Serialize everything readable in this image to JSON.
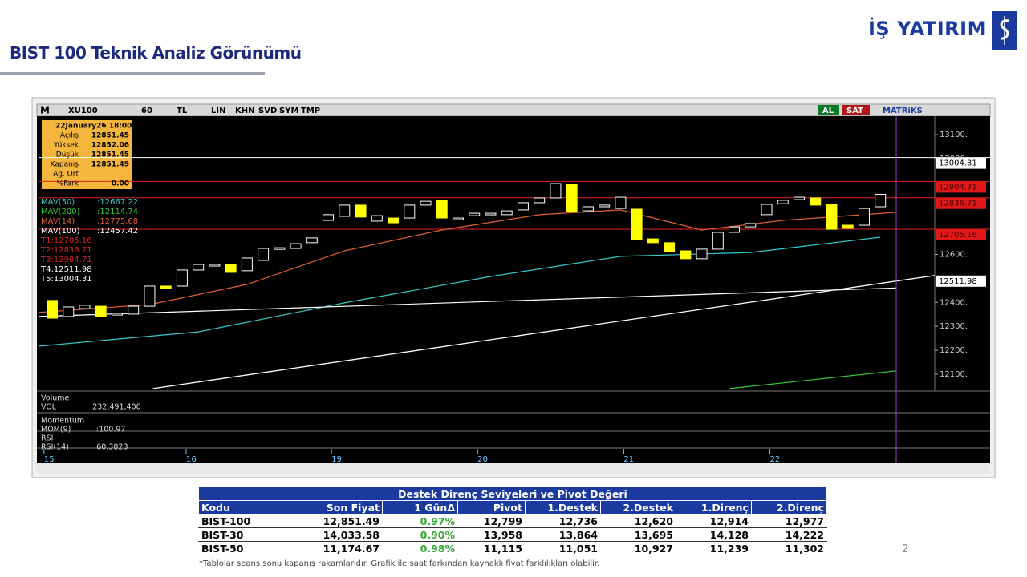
{
  "header": {
    "title": "BIST 100 Teknik Analiz Görünümü",
    "logo": "İŞ YATIRIM"
  },
  "toolbar": {
    "items": [
      "M",
      "XU100",
      "60",
      "TL",
      "LIN",
      "KHN",
      "SVD",
      "SYM",
      "TMP"
    ],
    "buy": "AL",
    "sell": "SAT",
    "brand": "MATRiKS"
  },
  "info_box": {
    "date": "22January26 18:00",
    "rows": [
      [
        "Açılış",
        "12851.45"
      ],
      [
        "Yüksek",
        "12852.06"
      ],
      [
        "Düşük",
        "12851.45"
      ],
      [
        "Kapanış",
        "12851.49"
      ],
      [
        "Ağ. Ort",
        null
      ],
      [
        "%Fark",
        "0.00"
      ]
    ]
  },
  "chart_data": {
    "type": "candlestick",
    "open": [
      12408,
      12341,
      12374,
      12384,
      12348,
      12351,
      12384,
      12468,
      12468,
      12535,
      12552,
      12558,
      12532,
      12575,
      12622,
      12625,
      12649,
      12742,
      12759,
      12806,
      12739,
      12752,
      12752,
      12806,
      12826,
      12746,
      12762,
      12766,
      12766,
      12786,
      12816,
      12836,
      12893,
      12782,
      12799,
      12792,
      12789,
      12665,
      12649,
      12615,
      12582,
      12622,
      12692,
      12715,
      12766,
      12812,
      12829,
      12836,
      12809,
      12722,
      12722,
      12799
    ],
    "close": [
      12334,
      12381,
      12388,
      12341,
      12354,
      12384,
      12468,
      12458,
      12535,
      12558,
      12558,
      12525,
      12585,
      12625,
      12628,
      12645,
      12669,
      12766,
      12806,
      12756,
      12762,
      12732,
      12806,
      12822,
      12752,
      12752,
      12772,
      12772,
      12782,
      12816,
      12836,
      12896,
      12779,
      12799,
      12806,
      12839,
      12662,
      12649,
      12612,
      12582,
      12622,
      12692,
      12715,
      12729,
      12809,
      12826,
      12839,
      12806,
      12705,
      12709,
      12792,
      12851
    ],
    "up_color": "#000000",
    "down_color": "#ffff00",
    "xlim": [
      -0.84,
      54.35
    ],
    "ylim": [
      12033,
      13177
    ],
    "yticks": [
      {
        "value": 13100,
        "label": "13100."
      },
      {
        "value": 13000,
        "label": "13000."
      },
      {
        "value": 12600,
        "label": "12600."
      },
      {
        "value": 12400,
        "label": "12400."
      },
      {
        "value": 12300,
        "label": "12300."
      },
      {
        "value": 12200,
        "label": "12200."
      },
      {
        "value": 12100,
        "label": "12100."
      }
    ],
    "xticks": [
      {
        "value": -0.5,
        "label": "15"
      },
      {
        "value": 8.25,
        "label": "16"
      },
      {
        "value": 17.2,
        "label": "19"
      },
      {
        "value": 26.2,
        "label": "20"
      },
      {
        "value": 35.2,
        "label": "21"
      },
      {
        "value": 44.2,
        "label": "22"
      }
    ],
    "moving_averages": [
      {
        "name": "MAV(50)",
        "value_label": ":12667.22",
        "color": "#33cccc",
        "x": [
          -0.84,
          9,
          18,
          27,
          35,
          43,
          51
        ],
        "values": [
          12217,
          12277,
          12398,
          12508,
          12592,
          12608,
          12672
        ]
      },
      {
        "name": "MAV(200)",
        "value_label": ":12114.74",
        "color": "#33cc33",
        "x": [
          41.7,
          51.98
        ],
        "values": [
          12040,
          12114
        ]
      },
      {
        "name": "MAV(14)",
        "value_label": ":12775.68",
        "color": "#e06030",
        "x": [
          -0.84,
          6,
          12,
          18,
          24,
          30,
          35,
          40,
          45,
          51.98
        ],
        "values": [
          12358,
          12391,
          12475,
          12615,
          12702,
          12766,
          12786,
          12702,
          12742,
          12776
        ]
      },
      {
        "name": "MAV(100)",
        "value_label": ":12457.42",
        "color": "#ffffff",
        "x": [
          -0.84,
          51.98
        ],
        "values": [
          12341,
          12460
        ]
      }
    ],
    "trend_line": {
      "color": "#ffffff",
      "x": [
        6.2,
        54.35
      ],
      "values": [
        12040,
        12512
      ]
    },
    "levels": [
      {
        "label": "T1:12705.16",
        "value": 12705.16,
        "color": "#e02020",
        "horizontal": true
      },
      {
        "label": "T2:12836.71",
        "value": 12836.71,
        "color": "#e02020",
        "horizontal": true
      },
      {
        "label": "T3:12904.71",
        "value": 12904.71,
        "color": "#e02020",
        "horizontal": true
      },
      {
        "label": "T4:12511.98",
        "value": 12511.98,
        "color": "#ffffff",
        "horizontal": false
      },
      {
        "label": "T5:13004.31",
        "value": 13004.31,
        "color": "#ffffff",
        "horizontal": true
      }
    ],
    "cursor_x": 51.98
  },
  "indicator_panels": [
    {
      "title": "Volume",
      "label": "VOL",
      "value": ":232,491,400"
    },
    {
      "title": "Momentum",
      "label": "MOM(9)",
      "value": ":100.97"
    },
    {
      "title": "RSI",
      "label": "RSI(14)",
      "value": ":60.3823"
    }
  ],
  "table": {
    "title": "Destek Direnç Seviyeleri ve Pivot Değeri",
    "headers": [
      "Kodu",
      "Son Fiyat",
      "1 GünΔ",
      "Pivot",
      "1.Destek",
      "2.Destek",
      "1.Direnç",
      "2.Direnç"
    ],
    "rows": [
      [
        "BIST-100",
        "12,851.49",
        "0.97%",
        "12,799",
        "12,736",
        "12,620",
        "12,914",
        "12,977"
      ],
      [
        "BIST-30",
        "14,033.58",
        "0.90%",
        "13,958",
        "13,864",
        "13,695",
        "14,128",
        "14,222"
      ],
      [
        "BIST-50",
        "11,174.67",
        "0.98%",
        "11,115",
        "11,051",
        "10,927",
        "11,239",
        "11,302"
      ]
    ]
  },
  "footnote": "*Tablolar seans sonu kapanış rakamlarıdır. Grafik ile saat farkından kaynaklı fiyat farklılıkları olabilir.",
  "page_number": "2"
}
